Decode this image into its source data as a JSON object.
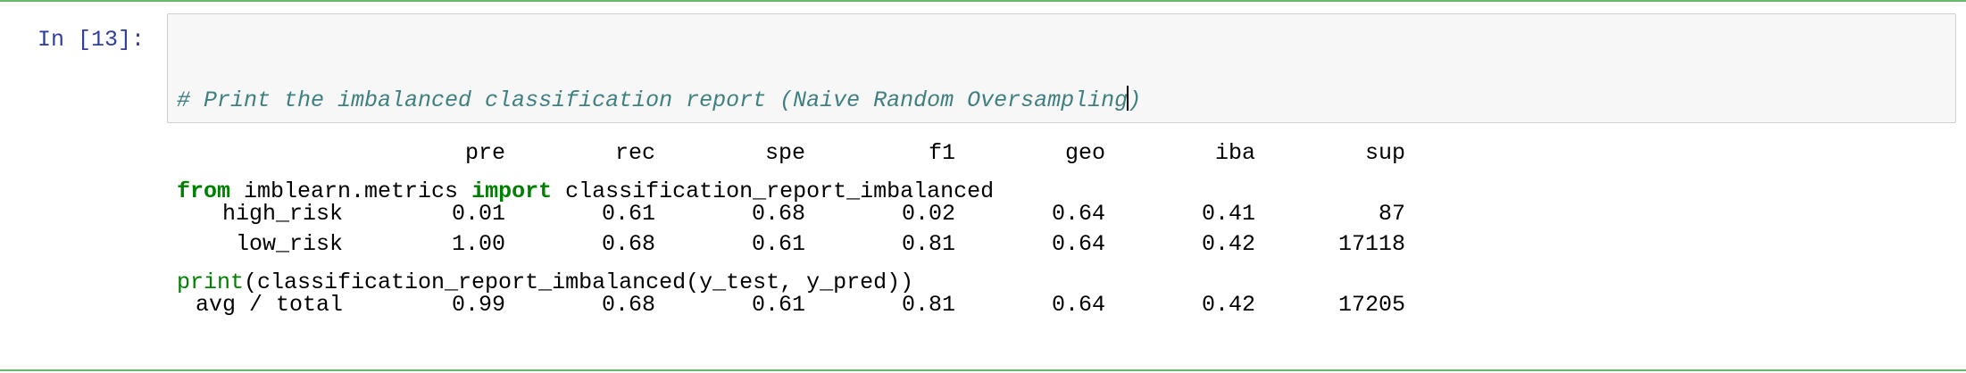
{
  "cell": {
    "prompt": "In [13]:",
    "code": {
      "line1_comment_a": "# Print the imbalanced classification report ",
      "line1_comment_b": "(Naive Random Oversampling",
      "line1_comment_c": ")",
      "line2_from": "from",
      "line2_module": " imblearn.metrics ",
      "line2_import": "import",
      "line2_name": " classification_report_imbalanced",
      "line3_print": "print",
      "line3_rest": "(classification_report_imbalanced(y_test, y_pred))"
    }
  },
  "output": {
    "headers": [
      "pre",
      "rec",
      "spe",
      "f1",
      "geo",
      "iba",
      "sup"
    ],
    "rows": [
      {
        "label": "high_risk",
        "values": [
          "0.01",
          "0.61",
          "0.68",
          "0.02",
          "0.64",
          "0.41",
          "87"
        ]
      },
      {
        "label": "low_risk",
        "values": [
          "1.00",
          "0.68",
          "0.61",
          "0.81",
          "0.64",
          "0.42",
          "17118"
        ]
      }
    ],
    "total": {
      "label": "avg / total",
      "values": [
        "0.99",
        "0.68",
        "0.61",
        "0.81",
        "0.64",
        "0.42",
        "17205"
      ]
    }
  },
  "colors": {
    "cell_border": "#66bb6a",
    "prompt": "#303f9f",
    "keyword": "#008000",
    "comment": "#408080",
    "editor_bg": "#f7f7f7"
  }
}
